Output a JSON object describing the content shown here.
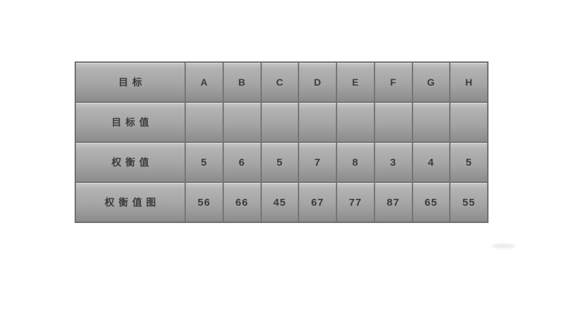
{
  "chart_data": {
    "type": "table",
    "columns": [
      "目标",
      "A",
      "B",
      "C",
      "D",
      "E",
      "F",
      "G",
      "H"
    ],
    "rows": [
      {
        "label": "目标值",
        "values": [
          "",
          "",
          "",
          "",
          "",
          "",
          "",
          ""
        ]
      },
      {
        "label": "权衡值",
        "values": [
          "5",
          "6",
          "5",
          "7",
          "8",
          "3",
          "4",
          "5"
        ]
      },
      {
        "label": "权衡值图",
        "values": [
          "56",
          "66",
          "45",
          "67",
          "77",
          "87",
          "65",
          "55"
        ]
      }
    ],
    "layout": {
      "grid": "beveled metallic cells",
      "legend": "none"
    }
  },
  "colors": {
    "page_bg": "#ffffff",
    "cell_top": "#c7c7c7",
    "cell_bottom": "#8c8c8c",
    "border": "#757575",
    "outer_border": "#6f6f6f",
    "text": "#3b3b3b"
  }
}
